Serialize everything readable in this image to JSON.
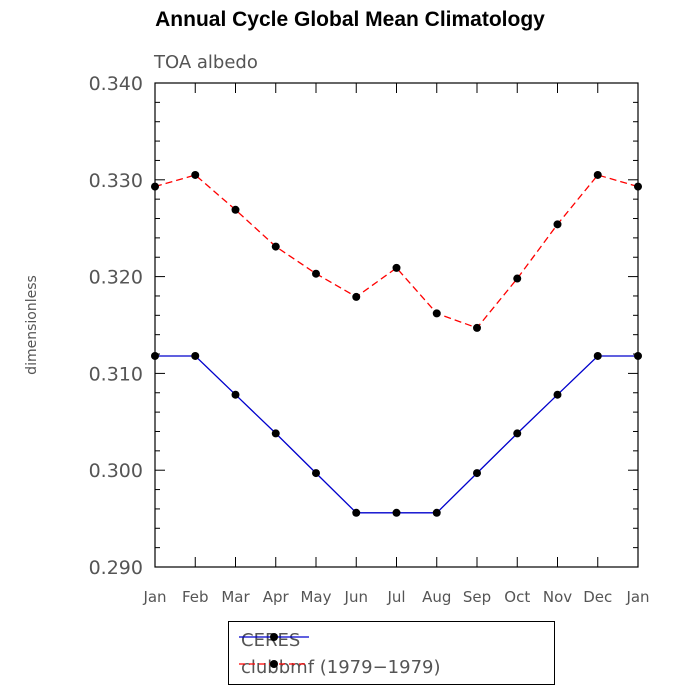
{
  "chart_data": {
    "type": "line",
    "title": "Annual Cycle Global Mean Climatology",
    "subtitle": "TOA albedo",
    "ylabel": "dimensionless",
    "xlabel": "",
    "categories": [
      "Jan",
      "Feb",
      "Mar",
      "Apr",
      "May",
      "Jun",
      "Jul",
      "Aug",
      "Sep",
      "Oct",
      "Nov",
      "Dec",
      "Jan"
    ],
    "ylim": [
      0.29,
      0.34
    ],
    "yticks": [
      "0.290",
      "0.300",
      "0.310",
      "0.320",
      "0.330",
      "0.340"
    ],
    "series": [
      {
        "name": "CERES",
        "color": "#0000cc",
        "dash": "solid",
        "values": [
          0.3118,
          0.3118,
          0.3078,
          0.3038,
          0.2997,
          0.2956,
          0.2956,
          0.2956,
          0.2997,
          0.3038,
          0.3078,
          0.3118,
          0.3118
        ]
      },
      {
        "name": "clubbmf (1979−1979)",
        "color": "#ff0000",
        "dash": "dashed",
        "values": [
          0.3293,
          0.3305,
          0.3269,
          0.3231,
          0.3203,
          0.3179,
          0.3209,
          0.3162,
          0.3147,
          0.3198,
          0.3254,
          0.3305,
          0.3293
        ]
      }
    ],
    "legend_position": "bottom"
  }
}
